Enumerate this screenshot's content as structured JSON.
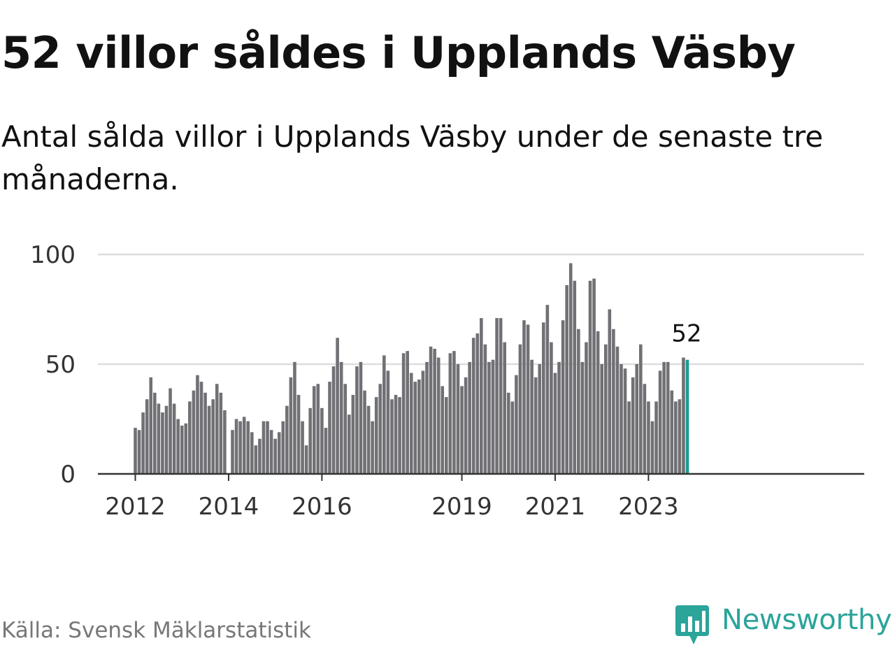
{
  "title": "52 villor såldes i Upplands Väsby",
  "subtitle": "Antal sålda villor i Upplands Väsby under de senaste tre månaderna.",
  "source": "Källa: Svensk Mäklarstatistik",
  "brand": {
    "name": "Newsworthy",
    "icon": "newsworthy-logo-icon",
    "color": "#2ba49a"
  },
  "colors": {
    "bar": "#717075",
    "highlight": "#1f9b91",
    "grid": "#dddddd",
    "axis": "#333333"
  },
  "chart_data": {
    "type": "bar",
    "title": "52 villor såldes i Upplands Väsby",
    "xlabel": "",
    "ylabel": "",
    "ylim": [
      0,
      100
    ],
    "yticks": [
      0,
      50,
      100
    ],
    "grid": true,
    "xticks": [
      {
        "label": "2012",
        "index": 0
      },
      {
        "label": "2014",
        "index": 24
      },
      {
        "label": "2016",
        "index": 48
      },
      {
        "label": "2019",
        "index": 84
      },
      {
        "label": "2021",
        "index": 108
      },
      {
        "label": "2023",
        "index": 132
      }
    ],
    "start": "2012-01",
    "highlight_label": "52",
    "series": [
      {
        "name": "Sålda villor",
        "values": [
          21,
          20,
          28,
          34,
          44,
          37,
          32,
          28,
          31,
          39,
          32,
          25,
          22,
          23,
          33,
          38,
          45,
          42,
          37,
          31,
          34,
          41,
          37,
          29,
          null,
          20,
          25,
          24,
          26,
          24,
          19,
          13,
          16,
          24,
          24,
          20,
          16,
          19,
          24,
          31,
          44,
          51,
          36,
          24,
          13,
          30,
          40,
          41,
          30,
          21,
          42,
          49,
          62,
          51,
          41,
          27,
          36,
          49,
          51,
          38,
          31,
          24,
          35,
          41,
          54,
          47,
          34,
          36,
          35,
          55,
          56,
          46,
          42,
          43,
          47,
          51,
          58,
          57,
          53,
          40,
          35,
          55,
          56,
          50,
          40,
          44,
          51,
          62,
          64,
          71,
          59,
          51,
          52,
          71,
          71,
          60,
          37,
          33,
          45,
          59,
          70,
          68,
          52,
          44,
          50,
          69,
          77,
          60,
          46,
          51,
          70,
          86,
          96,
          88,
          66,
          51,
          60,
          88,
          89,
          65,
          50,
          59,
          75,
          66,
          58,
          50,
          48,
          33,
          44,
          50,
          59,
          41,
          33,
          24,
          33,
          47,
          51,
          51,
          38,
          33,
          34,
          53,
          52
        ]
      }
    ]
  }
}
